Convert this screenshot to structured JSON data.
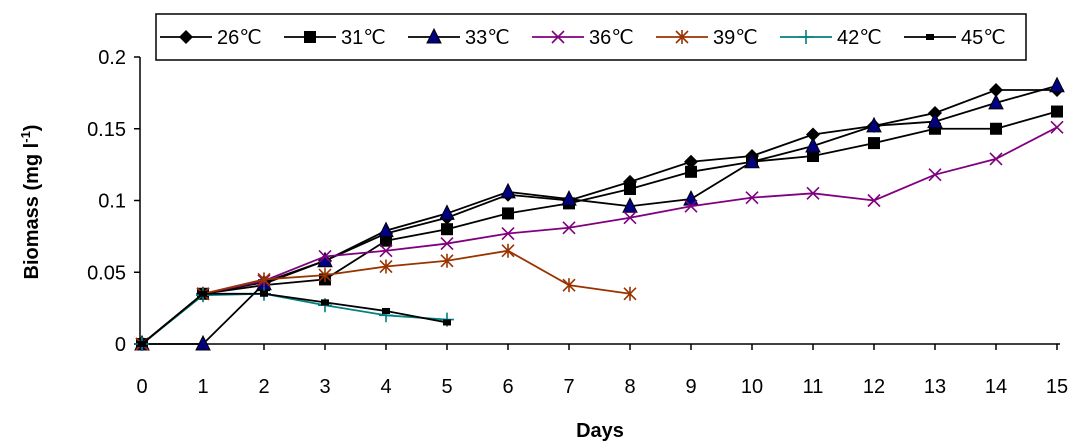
{
  "chart_data": {
    "type": "line",
    "xlabel": "Days",
    "ylabel_main": "Biomass (mg l",
    "ylabel_sup": "-1",
    "ylabel_close": ")",
    "ylim": [
      0,
      0.2
    ],
    "xlim": [
      0,
      15
    ],
    "y_ticks": [
      "0",
      "0.05",
      "0.1",
      "0.15",
      "0.2"
    ],
    "x_ticks": [
      "0",
      "1",
      "2",
      "3",
      "4",
      "5",
      "6",
      "7",
      "8",
      "9",
      "10",
      "11",
      "12",
      "13",
      "14",
      "15"
    ],
    "grid": false,
    "legend_position": "top",
    "series": [
      {
        "name": "26℃",
        "marker": "diamond",
        "color": "#000000",
        "x": [
          0,
          1,
          2,
          3,
          4,
          5,
          6,
          7,
          8,
          9,
          10,
          11,
          12,
          13,
          14,
          15
        ],
        "y": [
          0,
          0.035,
          0.043,
          0.058,
          0.077,
          0.088,
          0.104,
          0.1,
          0.113,
          0.127,
          0.131,
          0.146,
          0.152,
          0.161,
          0.177,
          0.177
        ]
      },
      {
        "name": "31℃",
        "marker": "square",
        "color": "#000000",
        "x": [
          0,
          1,
          2,
          3,
          4,
          5,
          6,
          7,
          8,
          9,
          10,
          11,
          12,
          13,
          14,
          15
        ],
        "y": [
          0,
          0.035,
          0.041,
          0.045,
          0.072,
          0.08,
          0.091,
          0.098,
          0.108,
          0.12,
          0.127,
          0.131,
          0.14,
          0.15,
          0.15,
          0.162
        ]
      },
      {
        "name": "33℃",
        "marker": "triangle",
        "color": "#000000",
        "x": [
          0,
          1,
          2,
          3,
          4,
          5,
          6,
          7,
          8,
          9,
          10,
          11,
          12,
          13,
          14,
          15
        ],
        "y": [
          0,
          0,
          0.042,
          0.058,
          0.079,
          0.091,
          0.106,
          0.101,
          0.096,
          0.101,
          0.127,
          0.138,
          0.152,
          0.155,
          0.168,
          0.18
        ]
      },
      {
        "name": "36℃",
        "marker": "x",
        "color": "#800080",
        "x": [
          0,
          1,
          2,
          3,
          4,
          5,
          6,
          7,
          8,
          9,
          10,
          11,
          12,
          13,
          14,
          15
        ],
        "y": [
          0,
          0.035,
          0.044,
          0.061,
          0.065,
          0.07,
          0.077,
          0.081,
          0.088,
          0.096,
          0.102,
          0.105,
          0.1,
          0.118,
          0.129,
          0.151
        ]
      },
      {
        "name": "39℃",
        "marker": "star",
        "color": "#993300",
        "x": [
          0,
          1,
          2,
          3,
          4,
          5,
          6,
          7,
          8
        ],
        "y": [
          0,
          0.035,
          0.045,
          0.048,
          0.054,
          0.058,
          0.065,
          0.041,
          0.035
        ]
      },
      {
        "name": "42℃",
        "marker": "plus",
        "color": "#008080",
        "x": [
          0,
          1,
          2,
          3,
          4,
          5
        ],
        "y": [
          0,
          0.034,
          0.035,
          0.027,
          0.02,
          0.017
        ]
      },
      {
        "name": "45℃",
        "marker": "smallsquare",
        "color": "#000000",
        "x": [
          0,
          1,
          2,
          3,
          4,
          5
        ],
        "y": [
          0,
          0.035,
          0.035,
          0.029,
          0.023,
          0.015
        ]
      }
    ]
  }
}
